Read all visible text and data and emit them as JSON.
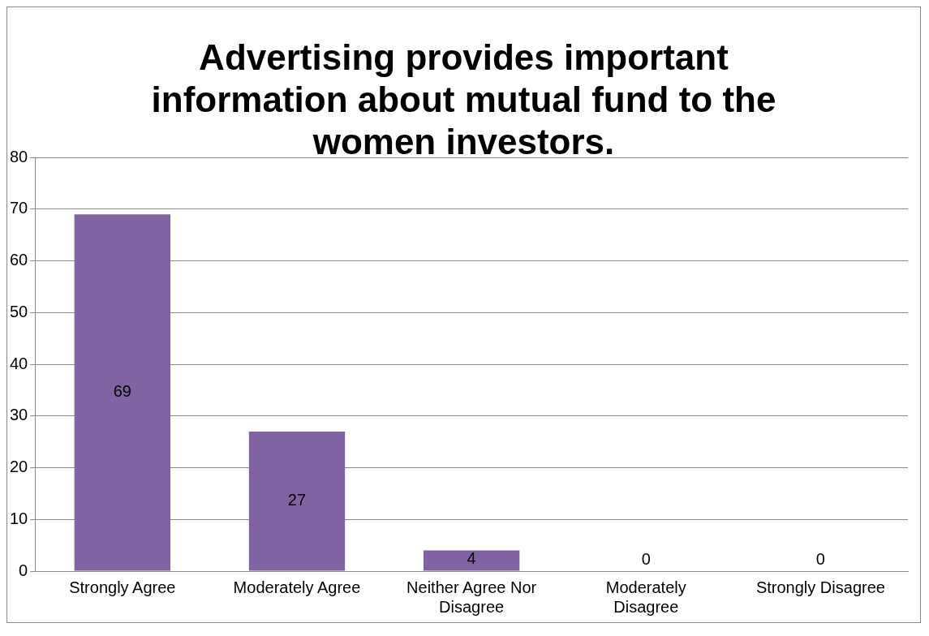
{
  "chart_data": {
    "type": "bar",
    "title": "Advertising provides important information about mutual fund to the women investors.",
    "categories": [
      "Strongly Agree",
      "Moderately Agree",
      "Neither Agree Nor Disagree",
      "Moderately Disagree",
      "Strongly Disagree"
    ],
    "values": [
      69,
      27,
      4,
      0,
      0
    ],
    "color": "#8064a2",
    "ylim": [
      0,
      80
    ],
    "yticks": [
      0,
      10,
      20,
      30,
      40,
      50,
      60,
      70,
      80
    ],
    "grid": "y",
    "data_labels": true,
    "legend": false
  }
}
